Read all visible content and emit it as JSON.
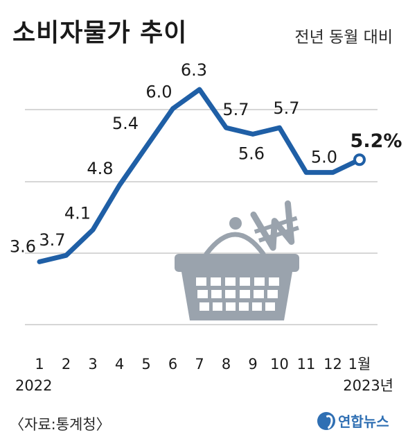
{
  "header": {
    "title": "소비자물가 추이",
    "subtitle": "전년 동월 대비"
  },
  "footer": {
    "source": "〈자료:통계청〉",
    "logo_text": "연합뉴스"
  },
  "colors": {
    "line": "#1f5fa6",
    "grid": "#c8c8c8",
    "basket": "#9aa3ad",
    "text": "#1a1a1a"
  },
  "chart_data": {
    "type": "line",
    "title": "소비자물가 추이",
    "subtitle": "전년 동월 대비",
    "categories": [
      "1",
      "2",
      "3",
      "4",
      "5",
      "6",
      "7",
      "8",
      "9",
      "10",
      "11",
      "12",
      "1월"
    ],
    "year_labels": [
      "2022",
      "2023년"
    ],
    "series": [
      {
        "values": [
          3.6,
          3.7,
          4.1,
          4.8,
          5.4,
          6.0,
          6.3,
          5.7,
          5.6,
          5.7,
          5.0,
          5.0,
          5.2
        ],
        "labels": [
          "3.6",
          "3.7",
          "4.1",
          "4.8",
          "5.4",
          "6.0",
          "6.3",
          "5.7",
          "5.6",
          "5.7",
          "5.0",
          "",
          "5.2%"
        ]
      }
    ],
    "ylim": [
      3.0,
      6.6
    ],
    "grid": true
  }
}
